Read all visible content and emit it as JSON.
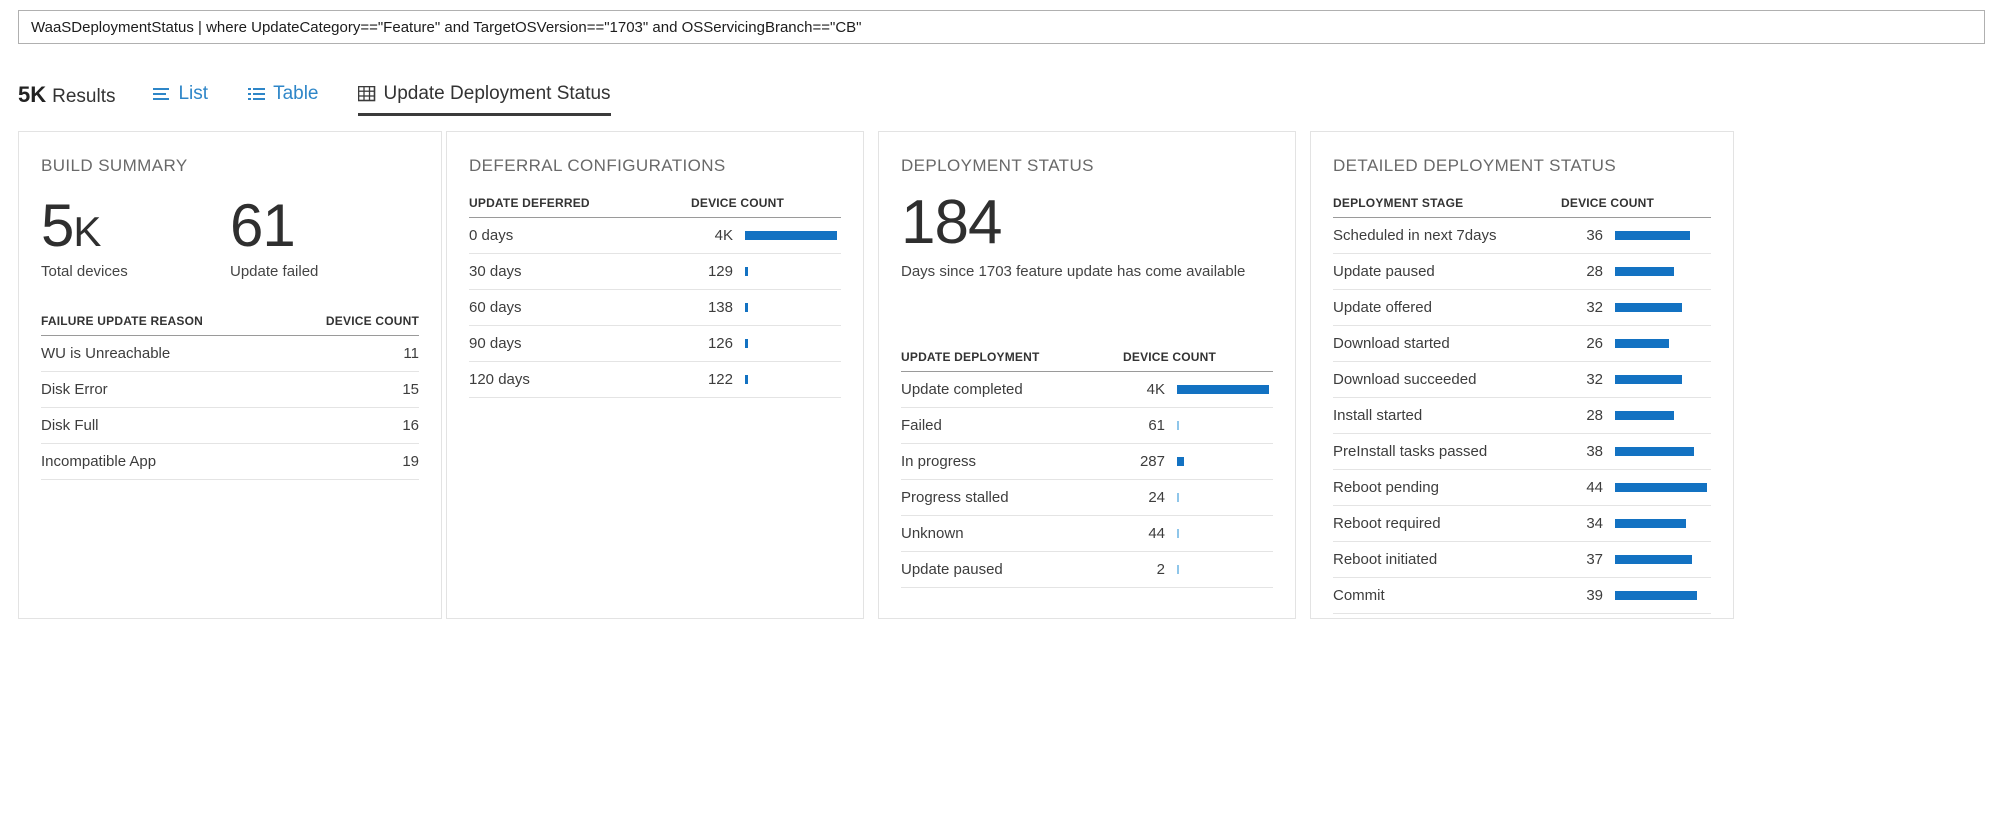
{
  "query": {
    "text": "WaaSDeploymentStatus | where UpdateCategory==\"Feature\" and TargetOSVersion==\"1703\" and OSServicingBranch==\"CB\""
  },
  "toolbar": {
    "results_count": "5K",
    "results_label": "Results",
    "tabs": [
      {
        "label": "List"
      },
      {
        "label": "Table"
      },
      {
        "label": "Update Deployment Status"
      }
    ]
  },
  "cards": {
    "build_summary": {
      "title": "BUILD SUMMARY",
      "stats": [
        {
          "value": "5K",
          "label": "Total devices"
        },
        {
          "value": "61",
          "label": "Update failed"
        }
      ],
      "table": {
        "col1": "FAILURE UPDATE REASON",
        "col2": "DEVICE COUNT",
        "rows": [
          {
            "label": "WU is Unreachable",
            "count": "11"
          },
          {
            "label": "Disk Error",
            "count": "15"
          },
          {
            "label": "Disk Full",
            "count": "16"
          },
          {
            "label": "Incompatible App",
            "count": "19"
          }
        ]
      }
    },
    "deferral_configurations": {
      "title": "DEFERRAL CONFIGURATIONS",
      "table": {
        "col1": "UPDATE DEFERRED",
        "col2": "DEVICE COUNT",
        "rows": [
          {
            "label": "0 days",
            "count": "4K"
          },
          {
            "label": "30 days",
            "count": "129"
          },
          {
            "label": "60 days",
            "count": "138"
          },
          {
            "label": "90 days",
            "count": "126"
          },
          {
            "label": "120 days",
            "count": "122"
          }
        ]
      }
    },
    "deployment_status": {
      "title": "DEPLOYMENT STATUS",
      "big_number": "184",
      "subtitle": "Days since 1703 feature update has come available",
      "table": {
        "col1": "UPDATE DEPLOYMENT",
        "col2": "DEVICE COUNT",
        "rows": [
          {
            "label": "Update completed",
            "count": "4K"
          },
          {
            "label": "Failed",
            "count": "61"
          },
          {
            "label": "In progress",
            "count": "287"
          },
          {
            "label": "Progress stalled",
            "count": "24"
          },
          {
            "label": "Unknown",
            "count": "44"
          },
          {
            "label": "Update paused",
            "count": "2"
          }
        ]
      }
    },
    "detailed_deployment_status": {
      "title": "DETAILED DEPLOYMENT STATUS",
      "table": {
        "col1": "DEPLOYMENT STAGE",
        "col2": "DEVICE COUNT",
        "rows": [
          {
            "label": "Scheduled in next 7days",
            "count": "36"
          },
          {
            "label": "Update paused",
            "count": "28"
          },
          {
            "label": "Update offered",
            "count": "32"
          },
          {
            "label": "Download started",
            "count": "26"
          },
          {
            "label": "Download succeeded",
            "count": "32"
          },
          {
            "label": "Install started",
            "count": "28"
          },
          {
            "label": "PreInstall tasks passed",
            "count": "38"
          },
          {
            "label": "Reboot pending",
            "count": "44"
          },
          {
            "label": "Reboot required",
            "count": "34"
          },
          {
            "label": "Reboot initiated",
            "count": "37"
          },
          {
            "label": "Commit",
            "count": "39"
          }
        ]
      }
    }
  },
  "colors": {
    "accent_blue": "#2e86c8",
    "bar_blue": "#1372c2",
    "bar_light_blue": "#8fc6ea",
    "active_tab_underline": "#3b3b3b"
  }
}
